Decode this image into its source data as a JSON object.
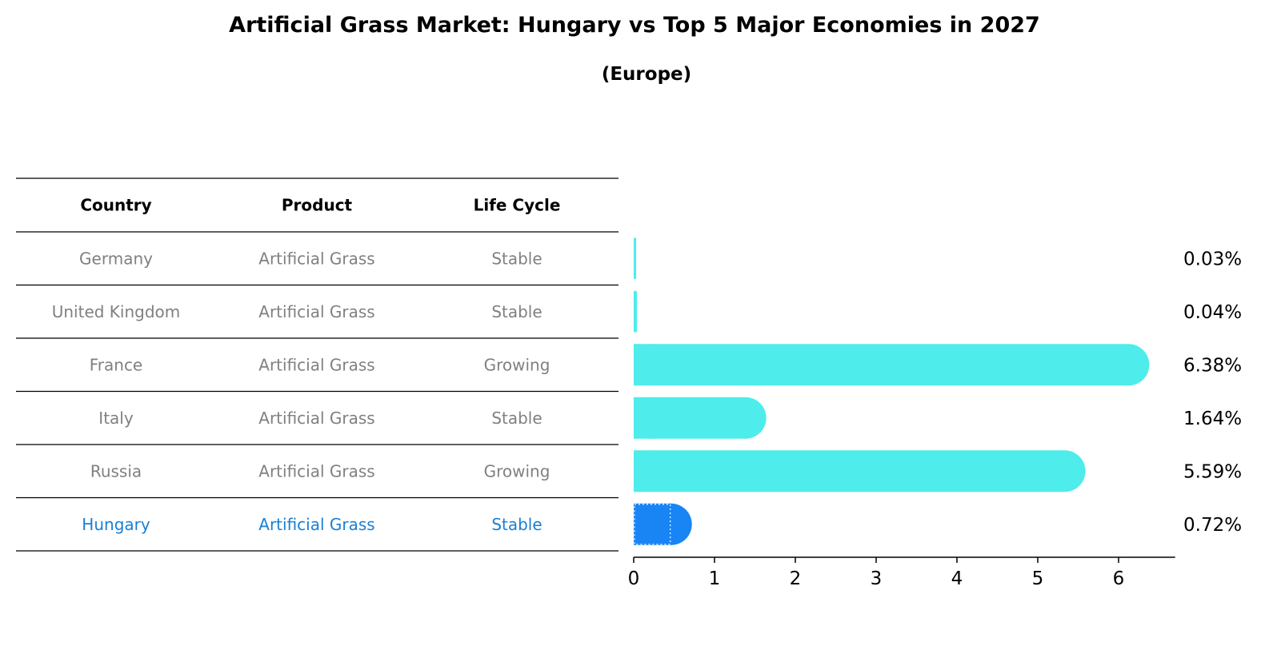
{
  "title": "Artificial Grass Market: Hungary vs Top 5 Major Economies in 2027",
  "subtitle": "(Europe)",
  "table": {
    "headers": [
      "Country",
      "Product",
      "Life Cycle"
    ],
    "rows": [
      {
        "country": "Germany",
        "product": "Artificial Grass",
        "life_cycle": "Stable",
        "highlight": false
      },
      {
        "country": "United Kingdom",
        "product": "Artificial Grass",
        "life_cycle": "Stable",
        "highlight": false
      },
      {
        "country": "France",
        "product": "Artificial Grass",
        "life_cycle": "Growing",
        "highlight": false
      },
      {
        "country": "Italy",
        "product": "Artificial Grass",
        "life_cycle": "Stable",
        "highlight": false
      },
      {
        "country": "Russia",
        "product": "Artificial Grass",
        "life_cycle": "Growing",
        "highlight": false
      },
      {
        "country": "Hungary",
        "product": "Artificial Grass",
        "life_cycle": "Stable",
        "highlight": true
      }
    ]
  },
  "chart_data": {
    "type": "bar",
    "orientation": "horizontal",
    "categories": [
      "Germany",
      "United Kingdom",
      "France",
      "Italy",
      "Russia",
      "Hungary"
    ],
    "values": [
      0.03,
      0.04,
      6.38,
      1.64,
      5.59,
      0.72
    ],
    "value_labels": [
      "0.03%",
      "0.04%",
      "6.38%",
      "1.64%",
      "5.59%",
      "0.72%"
    ],
    "xlim": [
      0,
      6.7
    ],
    "xticks": [
      0,
      1,
      2,
      3,
      4,
      5,
      6
    ],
    "grid": false,
    "colors": {
      "bar": "#4eeceb",
      "highlight_bar": "#1985f5",
      "muted_text": "#808080",
      "highlight_text": "#1a7fd6",
      "header_text": "#000000"
    }
  }
}
